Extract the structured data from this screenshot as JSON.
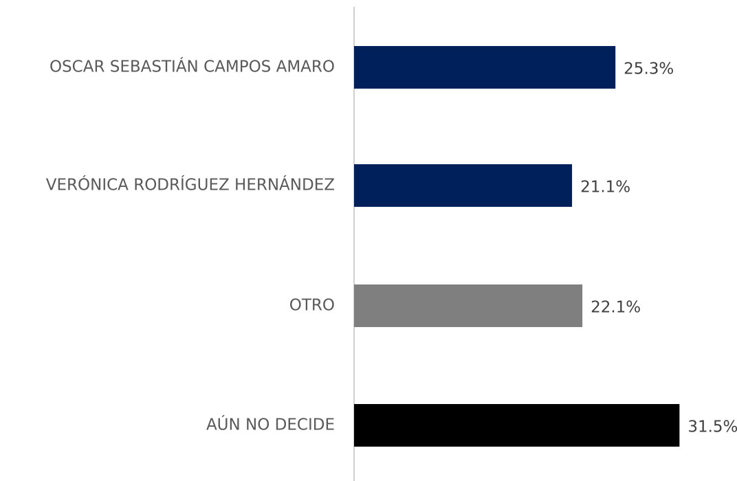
{
  "chart_data": {
    "type": "bar",
    "orientation": "horizontal",
    "categories": [
      "OSCAR SEBASTIÁN CAMPOS AMARO",
      "VERÓNICA RODRÍGUEZ HERNÁNDEZ",
      "OTRO",
      "AÚN NO DECIDE"
    ],
    "values": [
      25.3,
      21.1,
      22.1,
      31.5
    ],
    "value_labels": [
      "25.3%",
      "21.1%",
      "22.1%",
      "31.5%"
    ],
    "colors": [
      "#00205b",
      "#00205b",
      "#7f7f7f",
      "#000000"
    ],
    "xlim": [
      0,
      37
    ]
  }
}
